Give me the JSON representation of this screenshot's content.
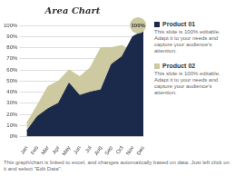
{
  "chart_data": {
    "type": "area",
    "title": "Area Chart",
    "categories": [
      "Jan",
      "Feb",
      "Mar",
      "Apr",
      "May",
      "Jun",
      "Jul",
      "Aug",
      "Sep",
      "Oct",
      "Nov",
      "Dec"
    ],
    "series": [
      {
        "name": "Product 01",
        "color": "#1b2a4a",
        "values": [
          5,
          18,
          25,
          30,
          48,
          37,
          40,
          42,
          65,
          72,
          90,
          95
        ]
      },
      {
        "name": "Product 02",
        "color": "#cdc9a0",
        "values": [
          12,
          28,
          45,
          50,
          60,
          54,
          62,
          80,
          80,
          82,
          76,
          100
        ]
      }
    ],
    "ylim": [
      0,
      100
    ],
    "yticks": [
      {
        "value": 0,
        "label": "0%"
      },
      {
        "value": 10,
        "label": "10%"
      },
      {
        "value": 20,
        "label": "20%"
      },
      {
        "value": 30,
        "label": "30%"
      },
      {
        "value": 40,
        "label": "40%"
      },
      {
        "value": 50,
        "label": "50%"
      },
      {
        "value": 60,
        "label": "60%"
      },
      {
        "value": 70,
        "label": "70%"
      },
      {
        "value": 80,
        "label": "80%"
      },
      {
        "value": 90,
        "label": "90%"
      },
      {
        "value": 100,
        "label": "100%"
      }
    ],
    "grid": true,
    "legend": "right",
    "annotations": [
      "100%",
      "This slide is 100% editable. Adapt it to your needs and capture your audience's attention.",
      "This slide is 100% editable. Adapt it to your needs and capture your audience's attention.",
      "This graph/chart is linked to excel, and changes automatically based on data.  Just left click on it and select \"Edit Data\"."
    ]
  }
}
